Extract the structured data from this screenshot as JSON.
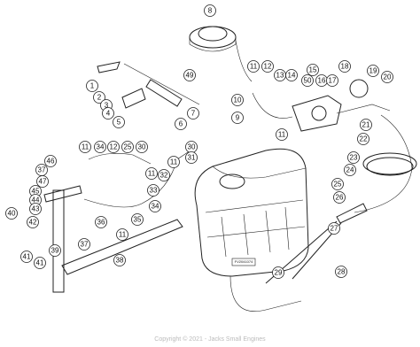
{
  "callouts": [
    8,
    49,
    1,
    2,
    3,
    4,
    5,
    6,
    7,
    11,
    12,
    13,
    14,
    15,
    50,
    16,
    17,
    18,
    19,
    20,
    10,
    9,
    11,
    21,
    22,
    23,
    24,
    25,
    26,
    27,
    28,
    29,
    30,
    31,
    11,
    11,
    34,
    12,
    25,
    30,
    32,
    33,
    34,
    35,
    36,
    11,
    46,
    37,
    47,
    45,
    44,
    43,
    42,
    40,
    41,
    41,
    39,
    38,
    37,
    11
  ],
  "tank_label": "FV2041074",
  "watermark": "Copyright © 2021 - Jacks Small Engines"
}
